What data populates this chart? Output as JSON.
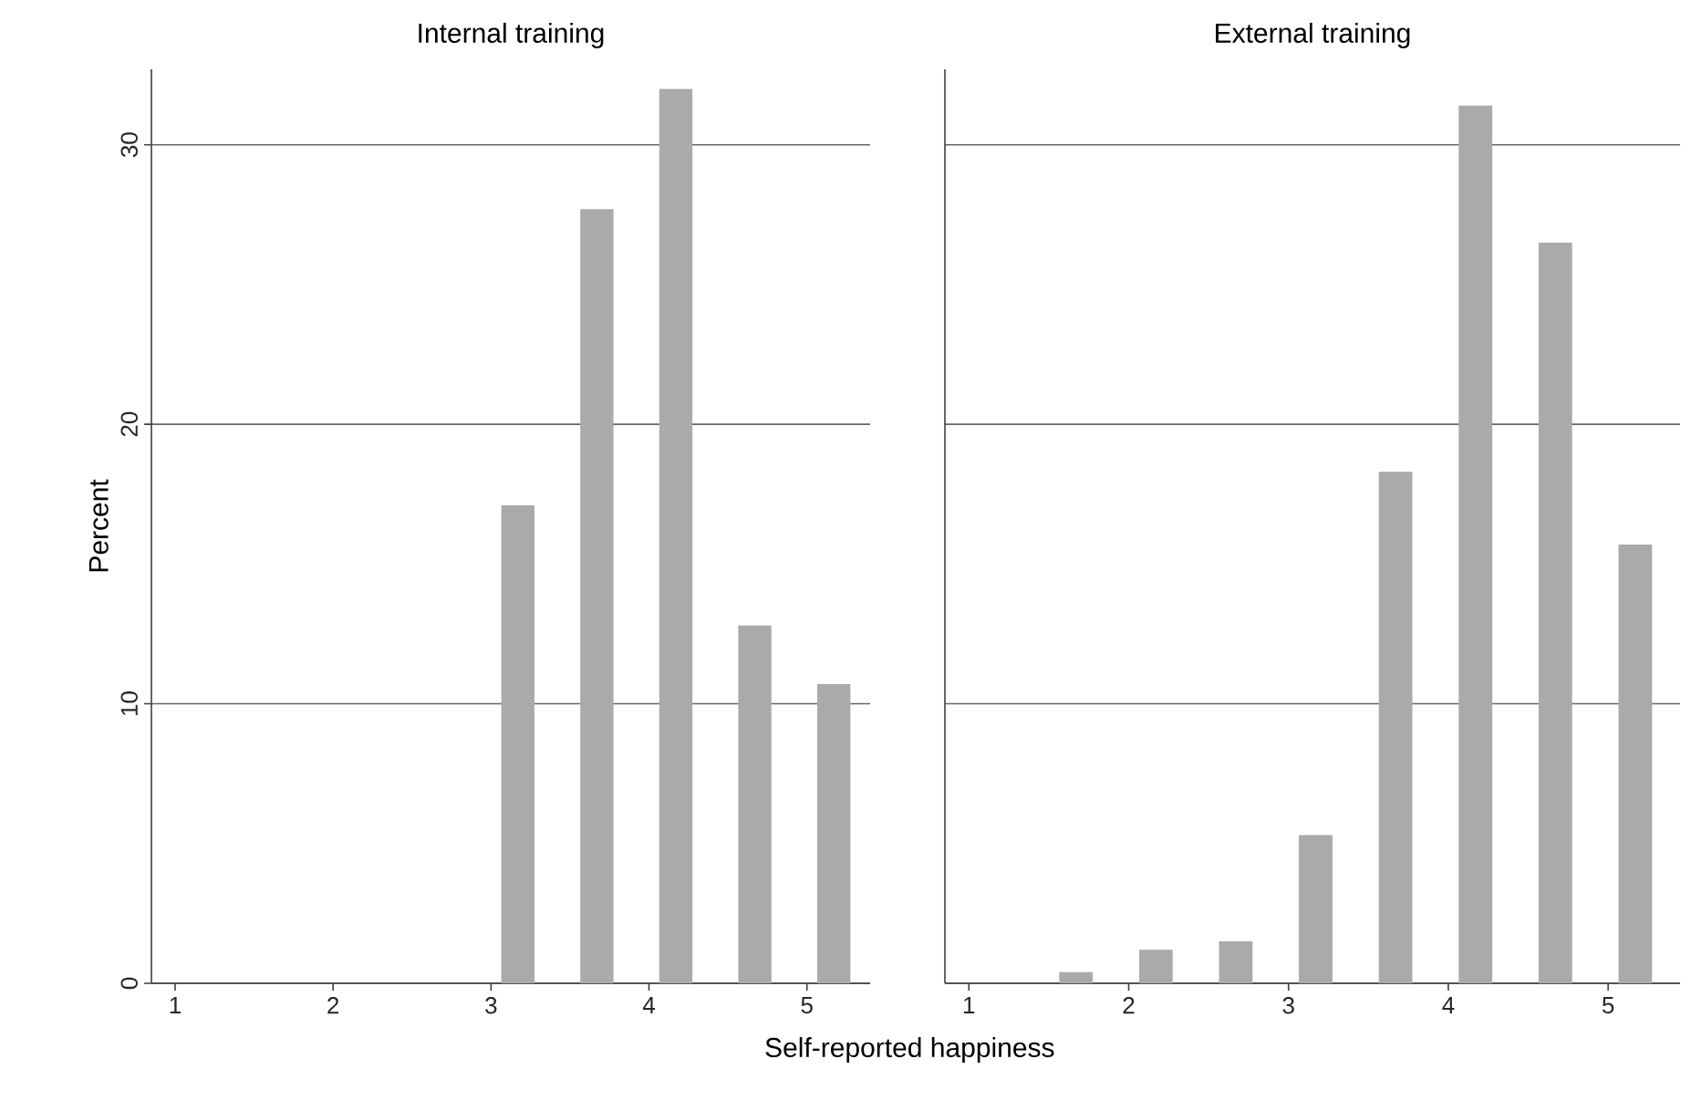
{
  "chart_data": [
    {
      "type": "bar",
      "title": "Internal training",
      "xlabel": "Self-reported happiness",
      "ylabel": "Percent",
      "x": [
        3.17,
        3.67,
        4.17,
        4.67,
        5.17
      ],
      "values": [
        17.1,
        27.7,
        32.0,
        12.8,
        10.7
      ],
      "color": "#aaaaaa",
      "xlim": [
        0.85,
        5.4
      ],
      "ylim": [
        0,
        32.7
      ],
      "xticks": [
        1,
        2,
        3,
        4,
        5
      ],
      "yticks": [
        0,
        10,
        20,
        30
      ],
      "grid": "y"
    },
    {
      "type": "bar",
      "title": "External training",
      "x": [
        1.67,
        2.17,
        2.67,
        3.17,
        3.67,
        4.17,
        4.67,
        5.17
      ],
      "values": [
        0.4,
        1.2,
        1.5,
        5.3,
        18.3,
        31.4,
        26.5,
        15.7
      ],
      "color": "#aaaaaa",
      "xlim": [
        0.85,
        5.45
      ],
      "ylim": [
        0,
        32.7
      ],
      "xticks": [
        1,
        2,
        3,
        4,
        5
      ],
      "yticks": [
        0,
        10,
        20,
        30
      ],
      "grid": "y",
      "tick_labels": "x"
    }
  ]
}
